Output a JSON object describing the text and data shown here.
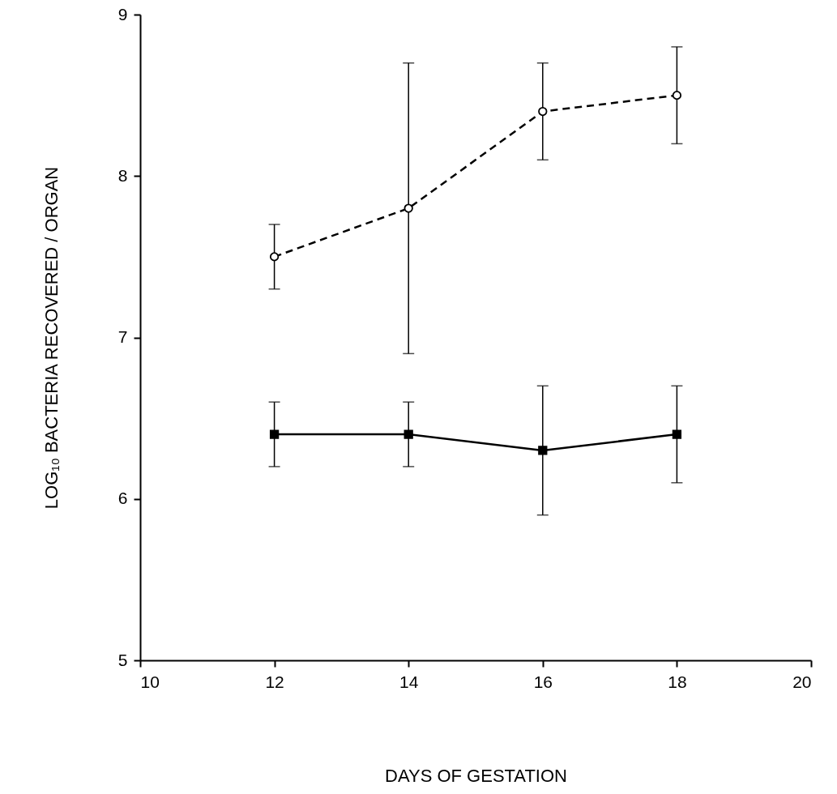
{
  "chart_data": {
    "type": "line",
    "xlabel": "DAYS OF GESTATION",
    "ylabel": "LOG₁₀ BACTERIA RECOVERED / ORGAN",
    "x": [
      12,
      14,
      16,
      18
    ],
    "series": [
      {
        "color": "#000000",
        "marker": "circle",
        "line_style": "dashed",
        "values": [
          7.5,
          7.8,
          8.4,
          8.5
        ],
        "errors": [
          [
            7.3,
            7.7
          ],
          [
            6.9,
            8.7
          ],
          [
            8.1,
            8.7
          ],
          [
            8.2,
            8.8
          ]
        ]
      },
      {
        "color": "#000000",
        "marker": "square",
        "line_style": "solid",
        "values": [
          6.4,
          6.4,
          6.3,
          6.4
        ],
        "errors": [
          [
            6.2,
            6.6
          ],
          [
            6.2,
            6.6
          ],
          [
            5.9,
            6.7
          ],
          [
            6.1,
            6.7
          ]
        ]
      }
    ],
    "xlim": [
      10,
      20
    ],
    "xticks": [
      10,
      12,
      14,
      16,
      18,
      20
    ],
    "ylim": [
      5,
      9
    ],
    "yticks": [
      5,
      6,
      7,
      8,
      9
    ],
    "grid": false
  }
}
